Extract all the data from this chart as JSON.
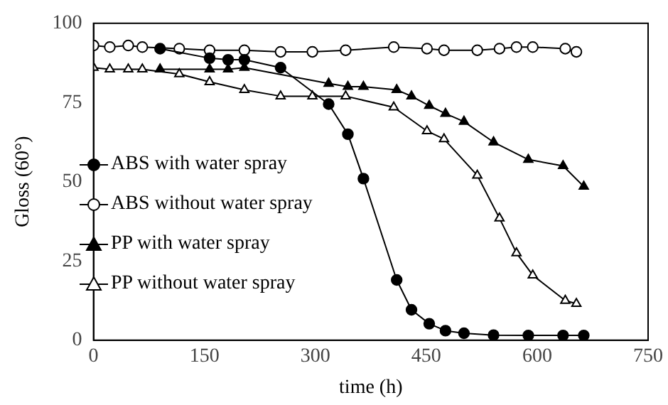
{
  "chart_data": {
    "type": "line",
    "xlabel": "time (h)",
    "ylabel": "Gloss (60°)",
    "xlim": [
      0,
      750
    ],
    "xticks": [
      0,
      150,
      300,
      450,
      600,
      750
    ],
    "ylim": [
      0,
      100
    ],
    "yticks": [
      0,
      25,
      50,
      75,
      100
    ],
    "grid": false,
    "legend": "bottom left",
    "line_style": "solid",
    "series": [
      {
        "name": "ABS with water spray",
        "color": "#000000",
        "marker": "circle",
        "x": [
          90,
          157,
          182,
          204,
          253,
          318,
          344,
          365,
          410,
          430,
          454,
          476,
          501,
          541,
          588,
          635,
          663
        ],
        "values": [
          92,
          89,
          88.5,
          88.5,
          86,
          74.5,
          65,
          51,
          19,
          9.6,
          5.2,
          3,
          2.2,
          1.6,
          1.5,
          1.5,
          1.5
        ]
      },
      {
        "name": "ABS without water spray",
        "color": "#000000",
        "marker": "circle-open",
        "x": [
          0,
          22,
          47,
          66,
          90,
          116,
          157,
          204,
          253,
          296,
          341,
          406,
          451,
          474,
          519,
          549,
          572,
          594,
          638,
          653
        ],
        "values": [
          93,
          92.5,
          93,
          92.5,
          null,
          92,
          91.5,
          91.5,
          91,
          91,
          91.5,
          92.5,
          92,
          91.5,
          91.5,
          92,
          92.5,
          92.5,
          92,
          91
        ]
      },
      {
        "name": "PP with water spray",
        "color": "#000000",
        "marker": "triangle",
        "x": [
          90,
          157,
          182,
          204,
          253,
          318,
          344,
          365,
          410,
          430,
          454,
          476,
          501,
          541,
          588,
          635,
          663
        ],
        "values": [
          85.5,
          85.5,
          85.5,
          86,
          null,
          81,
          80,
          80,
          79,
          77,
          74,
          71.5,
          69,
          62.5,
          57,
          55,
          48.5
        ]
      },
      {
        "name": "PP without water spray",
        "color": "#000000",
        "marker": "triangle-open",
        "x": [
          0,
          22,
          47,
          66,
          90,
          116,
          157,
          204,
          253,
          296,
          341,
          406,
          451,
          474,
          519,
          549,
          572,
          594,
          638,
          653
        ],
        "values": [
          86,
          85.5,
          85.5,
          85.5,
          null,
          84,
          81.5,
          79,
          77,
          77,
          77,
          73.5,
          66,
          63.5,
          52,
          38.5,
          27.5,
          20.5,
          12.5,
          11.5
        ]
      }
    ]
  }
}
